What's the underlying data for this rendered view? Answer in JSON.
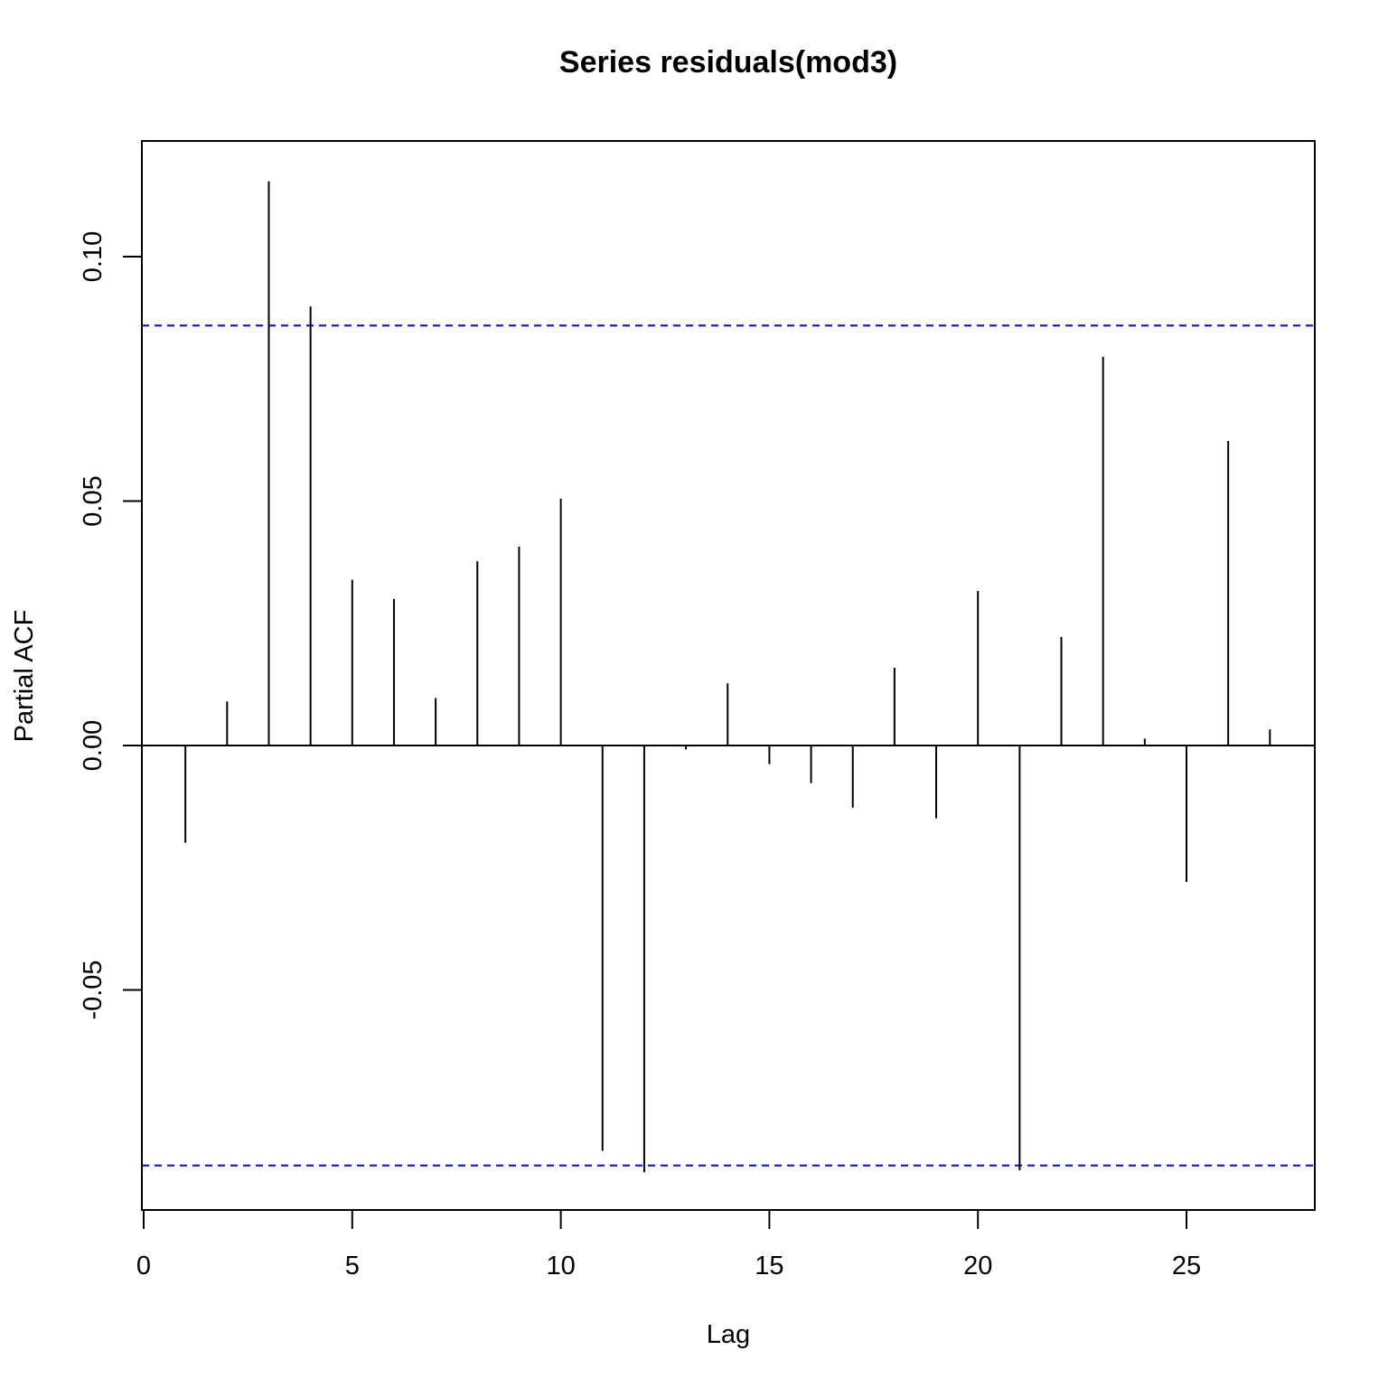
{
  "chart_data": {
    "type": "bar",
    "title": "Series  residuals(mod3)",
    "xlabel": "Lag",
    "ylabel": "Partial ACF",
    "xlim": [
      0,
      28
    ],
    "ylim": [
      -0.095,
      0.124
    ],
    "x_ticks": [
      "0",
      "5",
      "10",
      "15",
      "20",
      "25"
    ],
    "y_ticks": [
      "-0.05",
      "0.00",
      "0.05",
      "0.10"
    ],
    "confidence_bound": 0.0859,
    "confidence_color": "#0000ff",
    "bar_color": "#000000",
    "x": [
      1,
      2,
      3,
      4,
      5,
      6,
      7,
      8,
      9,
      10,
      11,
      12,
      13,
      14,
      15,
      16,
      17,
      18,
      19,
      20,
      21,
      22,
      23,
      24,
      25,
      26,
      27
    ],
    "values": [
      -0.0199,
      0.009,
      0.1154,
      0.0898,
      0.0339,
      0.03,
      0.0097,
      0.0377,
      0.0407,
      0.0505,
      -0.0829,
      -0.0873,
      -0.0008,
      0.0127,
      -0.0038,
      -0.0077,
      -0.0127,
      0.0159,
      -0.0149,
      0.0316,
      -0.0869,
      0.0222,
      0.0795,
      0.0014,
      -0.0279,
      0.0623,
      0.0033
    ]
  }
}
